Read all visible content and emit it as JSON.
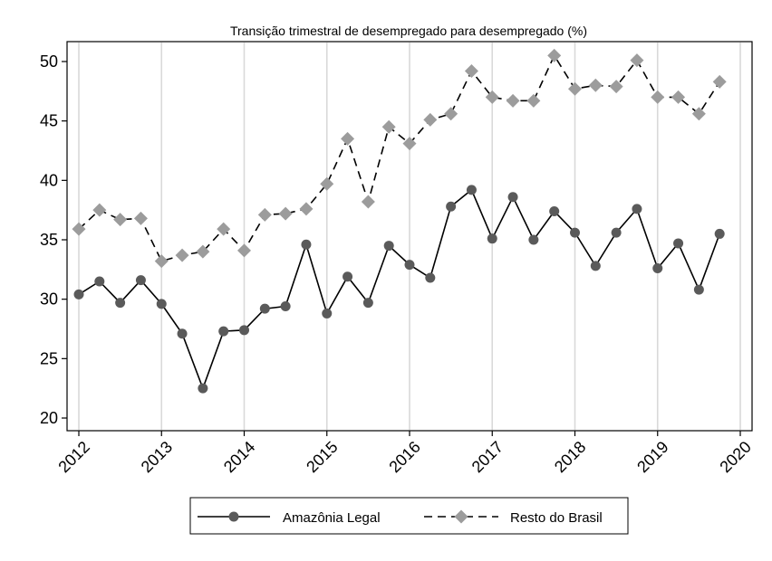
{
  "chart_data": {
    "type": "line",
    "title": "Transição trimestral de desempregado para desempregado (%)",
    "xlabel": "",
    "ylabel": "",
    "x": [
      2012.0,
      2012.25,
      2012.5,
      2012.75,
      2013.0,
      2013.25,
      2013.5,
      2013.75,
      2014.0,
      2014.25,
      2014.5,
      2014.75,
      2015.0,
      2015.25,
      2015.5,
      2015.75,
      2016.0,
      2016.25,
      2016.5,
      2016.75,
      2017.0,
      2017.25,
      2017.5,
      2017.75,
      2018.0,
      2018.25,
      2018.5,
      2018.75,
      2019.0,
      2019.25,
      2019.5,
      2019.75
    ],
    "xlim": [
      2012,
      2020
    ],
    "ylim": [
      19,
      52
    ],
    "xticks": [
      2012,
      2013,
      2014,
      2015,
      2016,
      2017,
      2018,
      2019,
      2020
    ],
    "xtick_labels": [
      "2012",
      "2013",
      "2014",
      "2015",
      "2016",
      "2017",
      "2018",
      "2019",
      "2020"
    ],
    "yticks": [
      20,
      25,
      30,
      35,
      40,
      45,
      50
    ],
    "ytick_labels": [
      "20",
      "25",
      "30",
      "35",
      "40",
      "45",
      "50"
    ],
    "grid": "vertical",
    "legend_position": "bottom",
    "series": [
      {
        "name": "Amazônia Legal",
        "color": "#000000",
        "marker_color": "#5a5a5a",
        "marker": "circle",
        "line_style": "solid",
        "values": [
          30.4,
          31.5,
          29.7,
          31.6,
          29.6,
          27.1,
          22.5,
          27.3,
          27.4,
          29.2,
          29.4,
          34.6,
          28.8,
          31.9,
          29.7,
          34.5,
          32.9,
          31.8,
          37.8,
          39.2,
          35.1,
          38.6,
          35.0,
          37.4,
          35.6,
          32.8,
          35.6,
          37.6,
          32.6,
          34.7,
          30.8,
          35.5
        ]
      },
      {
        "name": "Resto do Brasil",
        "color": "#000000",
        "marker_color": "#9c9c9c",
        "marker": "diamond",
        "line_style": "dashed",
        "values": [
          35.9,
          37.5,
          36.7,
          36.8,
          33.2,
          33.7,
          34.0,
          35.9,
          34.1,
          37.1,
          37.2,
          37.6,
          39.7,
          43.5,
          38.2,
          44.5,
          43.1,
          45.1,
          45.6,
          49.2,
          47.0,
          46.7,
          46.7,
          50.5,
          47.7,
          48.0,
          47.9,
          50.1,
          47.0,
          47.0,
          45.6,
          48.3
        ]
      }
    ]
  }
}
